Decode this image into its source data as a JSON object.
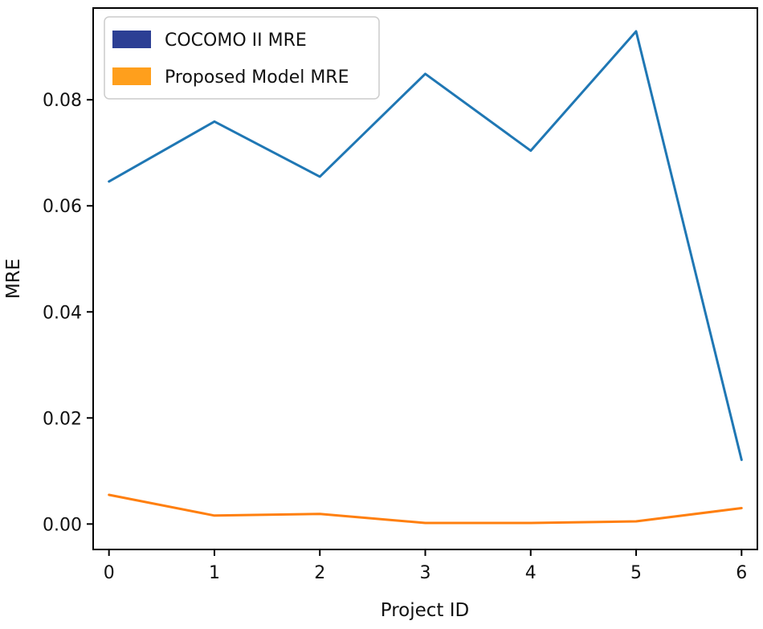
{
  "chart_data": {
    "type": "line",
    "title": "",
    "xlabel": "Project ID",
    "ylabel": "MRE",
    "x": [
      0,
      1,
      2,
      3,
      4,
      5,
      6
    ],
    "xticks": [
      "0",
      "1",
      "2",
      "3",
      "4",
      "5",
      "6"
    ],
    "yticks": [
      "0.00",
      "0.02",
      "0.04",
      "0.06",
      "0.08"
    ],
    "ytick_values": [
      0.0,
      0.02,
      0.04,
      0.06,
      0.08
    ],
    "xlim": [
      -0.15,
      6.15
    ],
    "ylim": [
      -0.0048,
      0.0973
    ],
    "grid": false,
    "legend_position": "top-left",
    "series": [
      {
        "name": "COCOMO II MRE",
        "color": "#1f77b4",
        "legend_color": "#2c3f94",
        "values": [
          0.0646,
          0.0759,
          0.0655,
          0.0849,
          0.0704,
          0.0929,
          0.0121
        ]
      },
      {
        "name": "Proposed Model MRE",
        "color": "#ff7f0e",
        "legend_color": "#ff9f1c",
        "values": [
          0.0055,
          0.0016,
          0.0019,
          0.0002,
          0.0002,
          0.0005,
          0.003
        ]
      }
    ]
  }
}
